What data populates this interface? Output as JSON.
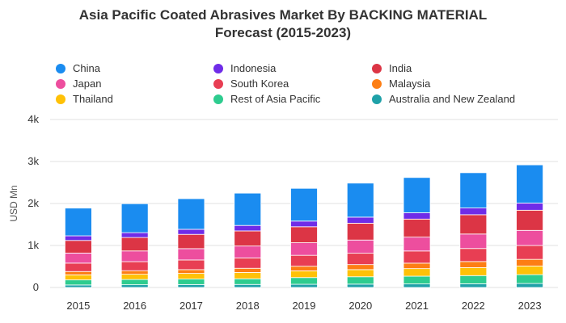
{
  "chart_data": {
    "type": "bar",
    "stacked": true,
    "title_line1": "Asia Pacific Coated Abrasives Market By BACKING MATERIAL",
    "title_line2": "Forecast (2015-2023)",
    "xlabel": "",
    "ylabel": "USD Mn",
    "ylim": [
      0,
      4000
    ],
    "yticks": [
      0,
      1000,
      2000,
      3000,
      4000
    ],
    "ytick_labels": [
      "0",
      "1k",
      "2k",
      "3k",
      "4k"
    ],
    "grid": true,
    "legend_position": "top",
    "categories": [
      "2015",
      "2016",
      "2017",
      "2018",
      "2019",
      "2020",
      "2021",
      "2022",
      "2023"
    ],
    "series": [
      {
        "name": "Australia and New Zealand",
        "color": "#1fa1a8",
        "values": [
          60,
          65,
          70,
          72,
          76,
          80,
          84,
          88,
          95
        ]
      },
      {
        "name": "Rest of Asia Pacific",
        "color": "#2ecc8f",
        "values": [
          120,
          125,
          130,
          135,
          160,
          175,
          185,
          195,
          210
        ]
      },
      {
        "name": "Thailand",
        "color": "#ffc107",
        "values": [
          120,
          125,
          135,
          150,
          160,
          170,
          180,
          190,
          205
        ]
      },
      {
        "name": "Malaysia",
        "color": "#fd7e14",
        "values": [
          80,
          85,
          90,
          100,
          110,
          120,
          130,
          145,
          160
        ]
      },
      {
        "name": "South Korea",
        "color": "#e83e53",
        "values": [
          200,
          215,
          230,
          245,
          260,
          270,
          290,
          310,
          330
        ]
      },
      {
        "name": "Japan",
        "color": "#ed4e9e",
        "values": [
          240,
          255,
          270,
          285,
          300,
          315,
          330,
          345,
          360
        ]
      },
      {
        "name": "India",
        "color": "#dc3545",
        "values": [
          300,
          320,
          340,
          360,
          380,
          400,
          430,
          460,
          480
        ]
      },
      {
        "name": "Indonesia",
        "color": "#6f2ce8",
        "values": [
          110,
          115,
          120,
          130,
          135,
          145,
          150,
          160,
          170
        ]
      },
      {
        "name": "China",
        "color": "#1a8cf0",
        "values": [
          660,
          690,
          730,
          770,
          780,
          810,
          840,
          840,
          910
        ]
      }
    ]
  },
  "legend": [
    {
      "label": "China",
      "color": "#1a8cf0"
    },
    {
      "label": "Indonesia",
      "color": "#6f2ce8"
    },
    {
      "label": "India",
      "color": "#dc3545"
    },
    {
      "label": "Japan",
      "color": "#ed4e9e"
    },
    {
      "label": "South Korea",
      "color": "#e83e53"
    },
    {
      "label": "Malaysia",
      "color": "#fd7e14"
    },
    {
      "label": "Thailand",
      "color": "#ffc107"
    },
    {
      "label": "Rest of Asia Pacific",
      "color": "#2ecc8f"
    },
    {
      "label": "Australia and New Zealand",
      "color": "#1fa1a8"
    }
  ]
}
